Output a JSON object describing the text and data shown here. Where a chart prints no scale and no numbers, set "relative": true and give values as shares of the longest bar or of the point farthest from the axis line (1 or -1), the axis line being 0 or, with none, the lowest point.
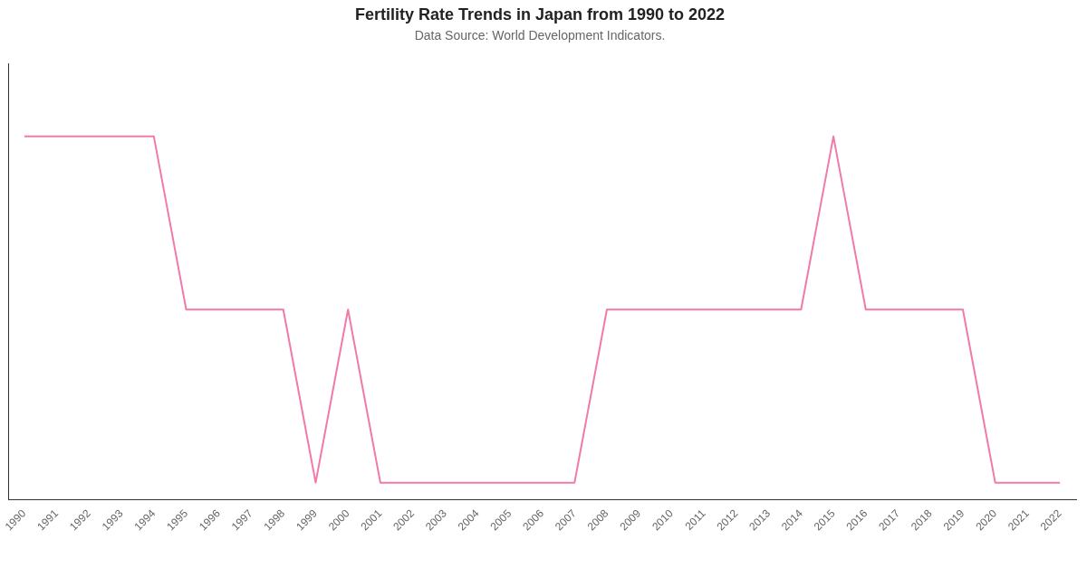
{
  "chart_data": {
    "type": "line",
    "title": "Fertility Rate Trends in Japan from 1990 to 2022",
    "subtitle": "Data Source: World Development Indicators.",
    "relative": true,
    "categories": [
      "1990",
      "1991",
      "1992",
      "1993",
      "1994",
      "1995",
      "1996",
      "1997",
      "1998",
      "1999",
      "2000",
      "2001",
      "2002",
      "2003",
      "2004",
      "2005",
      "2006",
      "2007",
      "2008",
      "2009",
      "2010",
      "2011",
      "2012",
      "2013",
      "2014",
      "2015",
      "2016",
      "2017",
      "2018",
      "2019",
      "2020",
      "2021",
      "2022"
    ],
    "series": [
      {
        "color": "#f07aaa",
        "values": [
          1,
          1,
          1,
          1,
          1,
          0.524,
          0.524,
          0.524,
          0.524,
          0.048,
          0.524,
          0.048,
          0.048,
          0.048,
          0.048,
          0.048,
          0.048,
          0.048,
          0.524,
          0.524,
          0.524,
          0.524,
          0.524,
          0.524,
          0.524,
          1,
          0.524,
          0.524,
          0.524,
          0.524,
          0.048,
          0.048,
          0.048
        ]
      }
    ],
    "grid": false,
    "legend": false,
    "marker": "none"
  }
}
